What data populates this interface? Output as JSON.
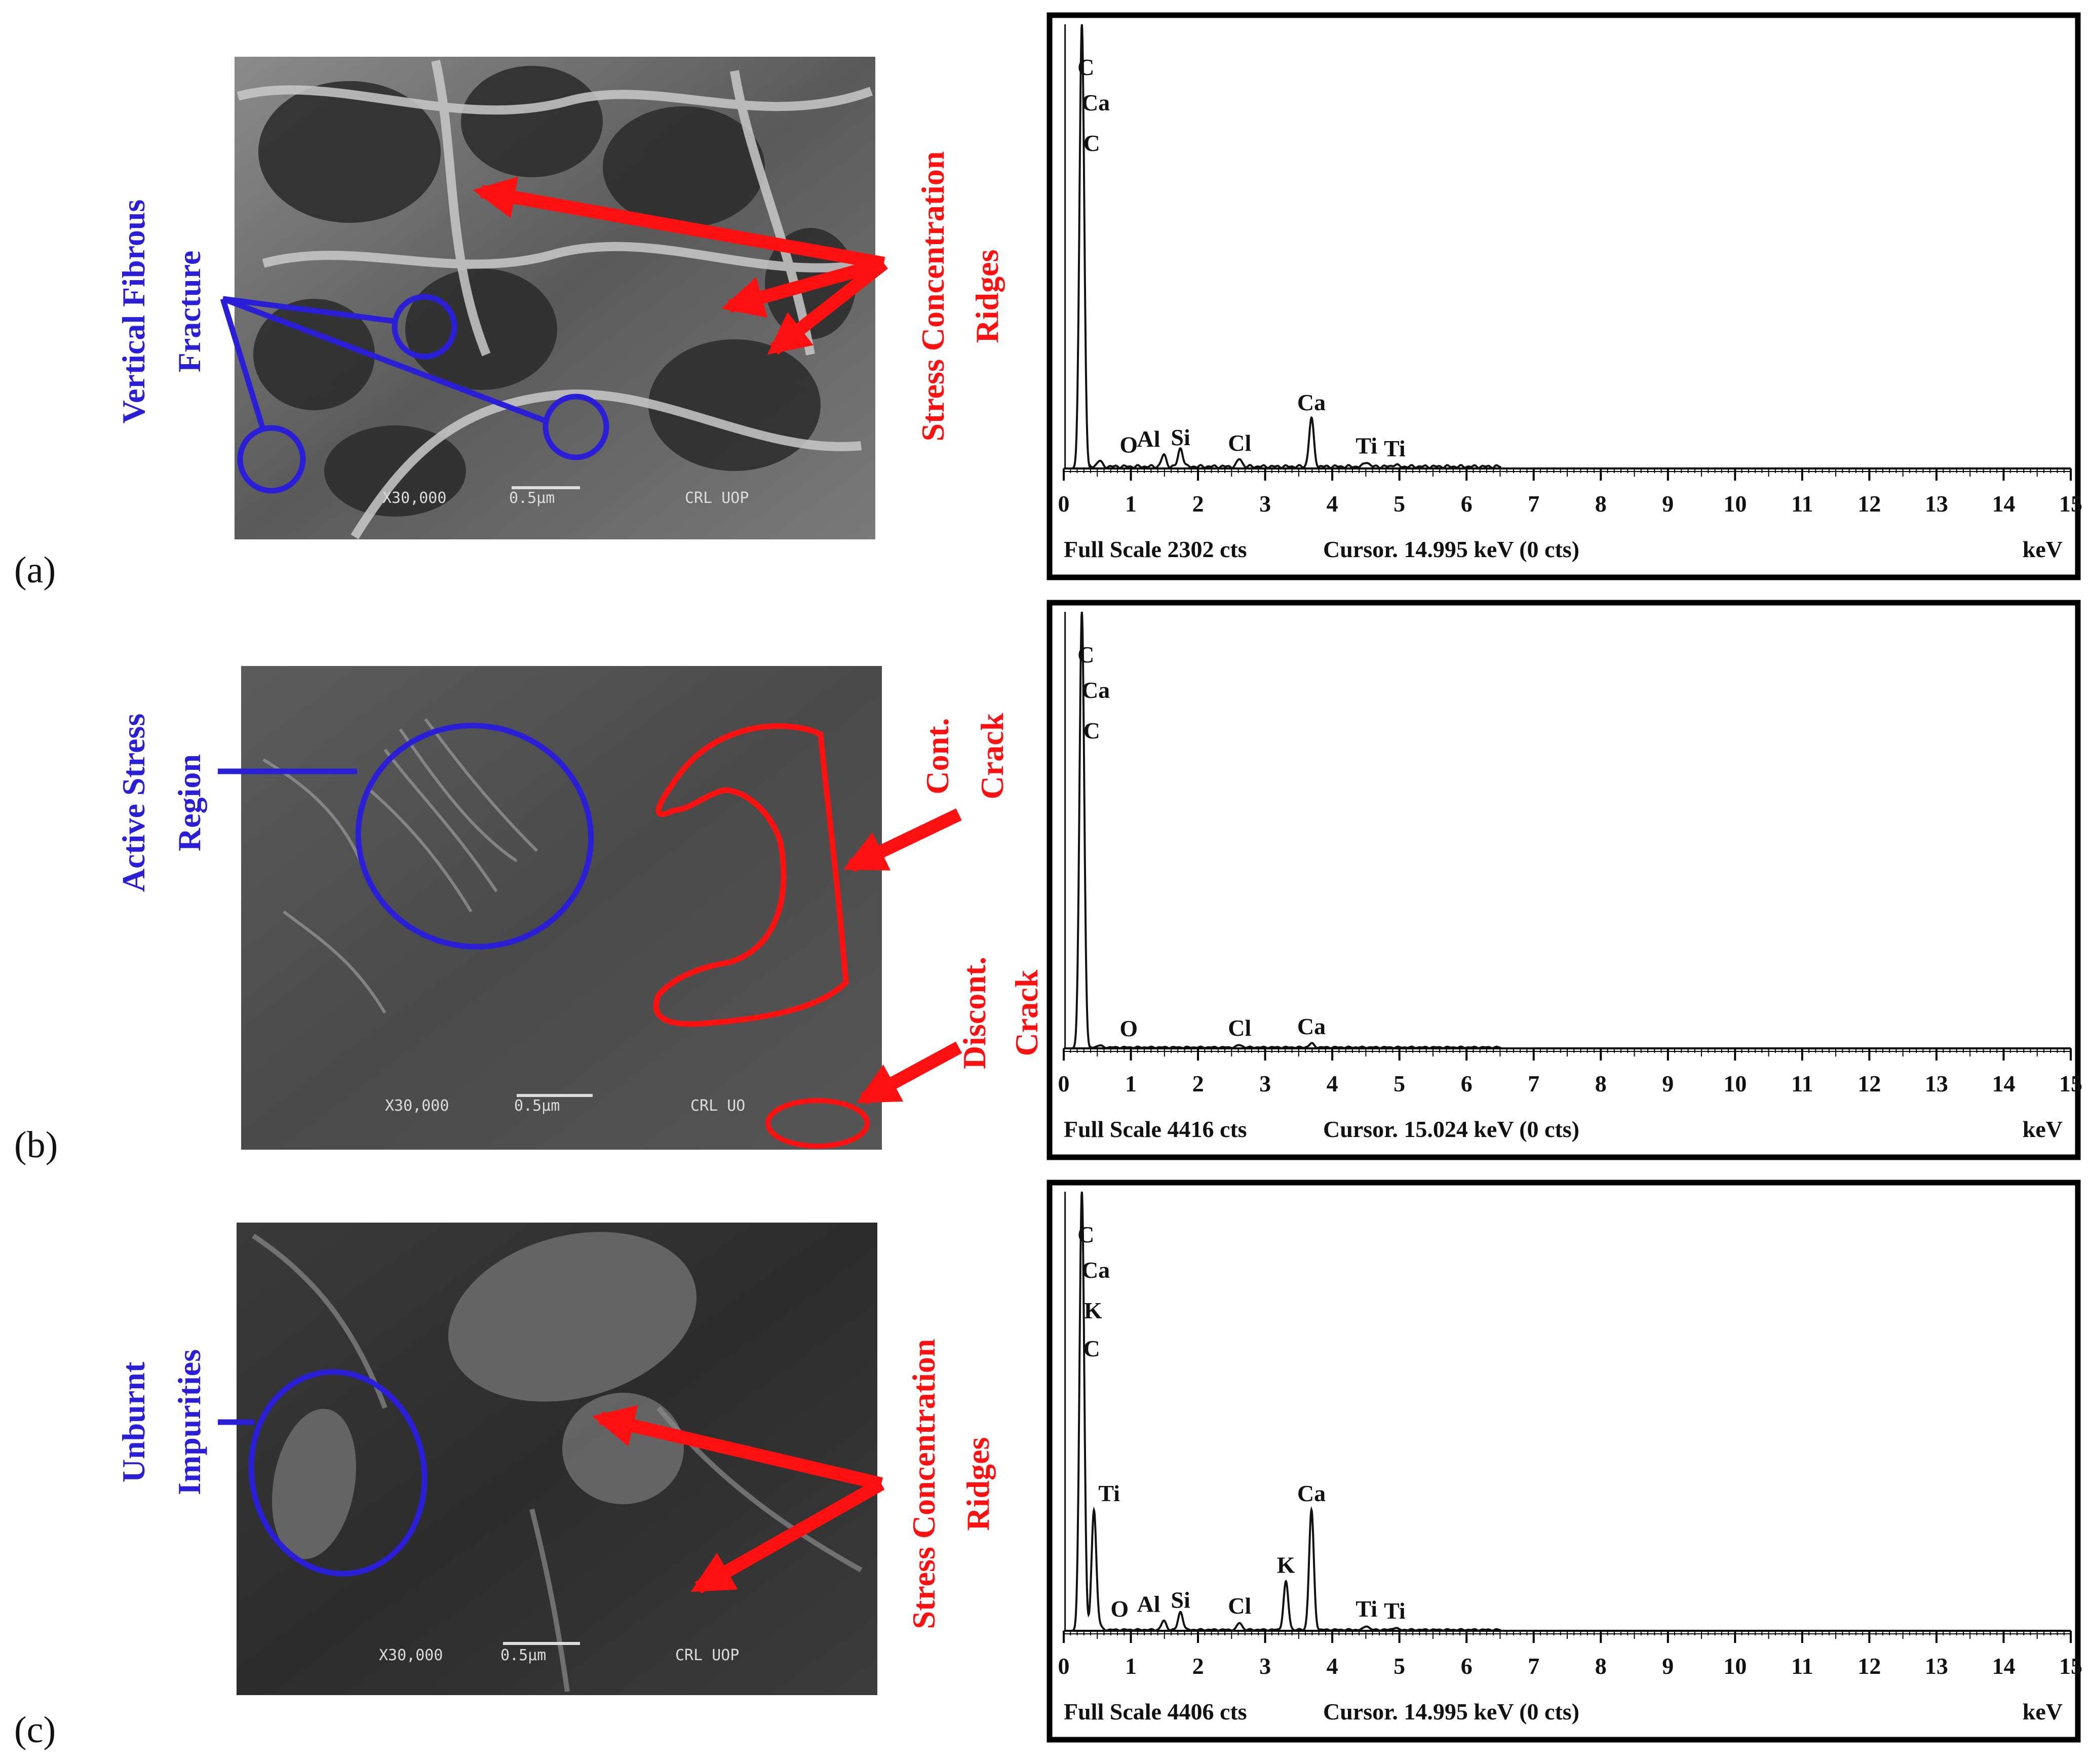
{
  "colors": {
    "annotation_blue": "#2a1fd6",
    "annotation_red": "#ff1010",
    "frame": "#000000"
  },
  "panels": [
    {
      "letter": "(a)",
      "sem": {
        "magnification": "X30,000",
        "scale": "0.5µm",
        "lab": "CRL UOP",
        "blue_label_lines": [
          "Vertical Fibrous",
          "Fracture"
        ],
        "red_label_lines": [
          "Stress Concentration",
          "Ridges"
        ]
      }
    },
    {
      "letter": "(b)",
      "sem": {
        "magnification": "X30,000",
        "scale": "0.5µm",
        "lab": "CRL UO",
        "blue_label_lines": [
          "Active Stress",
          "Region"
        ],
        "red_label_lines": [
          "Cont.",
          "Crack"
        ],
        "red_label2_lines": [
          "Discont.",
          "Crack"
        ]
      }
    },
    {
      "letter": "(c)",
      "sem": {
        "magnification": "X30,000",
        "scale": "0.5µm",
        "lab": "CRL UOP",
        "blue_label_lines": [
          "Unburnt",
          "Impurities"
        ],
        "red_label_lines": [
          "Stress Concentration",
          "Ridges"
        ]
      }
    }
  ],
  "chart_data": [
    {
      "type": "line",
      "xlabel": "keV",
      "x_ticks": [
        "0",
        "1",
        "2",
        "3",
        "4",
        "5",
        "6",
        "7",
        "8",
        "9",
        "10",
        "11",
        "12",
        "13",
        "14",
        "15"
      ],
      "xlim": [
        0,
        15
      ],
      "footer": {
        "full_scale": "Full Scale 2302 cts",
        "cursor": "Cursor. 14.995 keV (0 cts)",
        "unit": "keV"
      },
      "peaks": [
        {
          "label": "C",
          "x": 0.27,
          "y": 2302
        },
        {
          "label": "Ca",
          "x": 0.34,
          "y": 1950
        },
        {
          "label": "C",
          "x": 0.28,
          "y": 1800
        },
        {
          "label": "O",
          "x": 0.53,
          "y": 30
        },
        {
          "label": "Al",
          "x": 1.49,
          "y": 60
        },
        {
          "label": "Si",
          "x": 1.74,
          "y": 95
        },
        {
          "label": "Cl",
          "x": 2.62,
          "y": 40
        },
        {
          "label": "Ca",
          "x": 3.69,
          "y": 250
        },
        {
          "label": "Ti",
          "x": 4.51,
          "y": 25
        },
        {
          "label": "Ti",
          "x": 4.93,
          "y": 10
        }
      ]
    },
    {
      "type": "line",
      "xlabel": "keV",
      "x_ticks": [
        "0",
        "1",
        "2",
        "3",
        "4",
        "5",
        "6",
        "7",
        "8",
        "9",
        "10",
        "11",
        "12",
        "13",
        "14",
        "15"
      ],
      "xlim": [
        0,
        15
      ],
      "footer": {
        "full_scale": "Full Scale 4416 cts",
        "cursor": "Cursor. 15.024 keV (0 cts)",
        "unit": "keV"
      },
      "peaks": [
        {
          "label": "C",
          "x": 0.27,
          "y": 4416
        },
        {
          "label": "Ca",
          "x": 0.34,
          "y": 3700
        },
        {
          "label": "C",
          "x": 0.28,
          "y": 3300
        },
        {
          "label": "O",
          "x": 0.53,
          "y": 20
        },
        {
          "label": "Cl",
          "x": 2.62,
          "y": 25
        },
        {
          "label": "Ca",
          "x": 3.69,
          "y": 40
        }
      ]
    },
    {
      "type": "line",
      "xlabel": "keV",
      "x_ticks": [
        "0",
        "1",
        "2",
        "3",
        "4",
        "5",
        "6",
        "7",
        "8",
        "9",
        "10",
        "11",
        "12",
        "13",
        "14",
        "15"
      ],
      "xlim": [
        0,
        15
      ],
      "footer": {
        "full_scale": "Full Scale 4406 cts",
        "cursor": "Cursor. 14.995 keV (0 cts)",
        "unit": "keV"
      },
      "peaks": [
        {
          "label": "C",
          "x": 0.27,
          "y": 4406
        },
        {
          "label": "Ca",
          "x": 0.34,
          "y": 3950
        },
        {
          "label": "K",
          "x": 0.3,
          "y": 3560
        },
        {
          "label": "C",
          "x": 0.28,
          "y": 3150
        },
        {
          "label": "Ti",
          "x": 0.45,
          "y": 1200
        },
        {
          "label": "O",
          "x": 0.53,
          "y": 40
        },
        {
          "label": "Al",
          "x": 1.49,
          "y": 90
        },
        {
          "label": "Si",
          "x": 1.74,
          "y": 180
        },
        {
          "label": "Cl",
          "x": 2.62,
          "y": 70
        },
        {
          "label": "K",
          "x": 3.31,
          "y": 480
        },
        {
          "label": "Ca",
          "x": 3.69,
          "y": 1200
        },
        {
          "label": "Ti",
          "x": 4.51,
          "y": 40
        },
        {
          "label": "Ti",
          "x": 4.93,
          "y": 20
        }
      ]
    }
  ]
}
